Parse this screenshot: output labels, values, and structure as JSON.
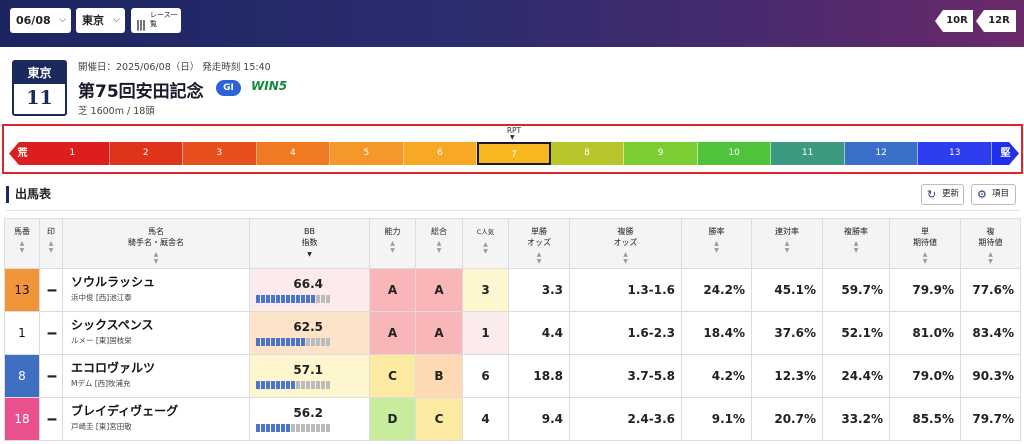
{
  "header": {
    "date": "06/08",
    "venue": "東京",
    "race_list_label": "レース一覧",
    "prev_race": "10R",
    "next_race": "12R"
  },
  "race": {
    "venue": "東京",
    "number": "11",
    "meta": "開催日：2025/06/08（日） 発走時刻 15:40",
    "title": "第75回安田記念",
    "grade": "GI",
    "win5": "WIN5",
    "condition": "芝 1600m / 18頭"
  },
  "rpt": {
    "label": "RPT",
    "left_end": "荒",
    "right_end": "堅",
    "current": 7,
    "segments": [
      {
        "label": "1",
        "color": "#dd1e1e"
      },
      {
        "label": "2",
        "color": "#df3419"
      },
      {
        "label": "3",
        "color": "#e94f1e"
      },
      {
        "label": "4",
        "color": "#f07a22"
      },
      {
        "label": "5",
        "color": "#f5982a"
      },
      {
        "label": "6",
        "color": "#f7a926"
      },
      {
        "label": "7",
        "color": "#f7b81f"
      },
      {
        "label": "8",
        "color": "#b7c52a"
      },
      {
        "label": "9",
        "color": "#7ccc33"
      },
      {
        "label": "10",
        "color": "#4ec33b"
      },
      {
        "label": "11",
        "color": "#3b9a80"
      },
      {
        "label": "12",
        "color": "#3b6fc9"
      },
      {
        "label": "13",
        "color": "#2c3ef0"
      }
    ],
    "left_color": "#dd1e1e",
    "right_color": "#1f2fea"
  },
  "section": {
    "title": "出馬表",
    "refresh_label": "更新",
    "items_label": "項目"
  },
  "table": {
    "headers": {
      "umaban": "馬番",
      "mark": "印",
      "name": "馬名",
      "name_sub": "騎手名・厩舎名",
      "bb": "BB",
      "bb_sub": "指数",
      "ability": "能力",
      "total": "総合",
      "c_ninki": "C人気",
      "win_odds": "単勝",
      "win_odds_sub": "オッズ",
      "place_odds": "複勝",
      "place_odds_sub": "オッズ",
      "win_rate": "勝率",
      "rentai_rate": "連対率",
      "place_rate": "複勝率",
      "win_ev": "単",
      "win_ev_sub": "期待値",
      "place_ev": "複",
      "place_ev_sub": "期待値"
    },
    "rows": [
      {
        "umaban": "13",
        "uma_color": "#f0953a",
        "uma_text": "#111",
        "mark": "--",
        "horse": "ソウルラッシュ",
        "jockey": "浜中俊 [西]池江泰",
        "bb": "66.4",
        "bb_level": 0.8,
        "bb_bg": "#fbebec",
        "ability": "A",
        "ability_bg": "#f9b6b8",
        "total": "A",
        "total_bg": "#f9b6b8",
        "c": "3",
        "c_bg": "#fdf6cf",
        "win_odds": "3.3",
        "place_odds": "1.3-1.6",
        "win_rate": "24.2%",
        "rentai_rate": "45.1%",
        "place_rate": "59.7%",
        "win_ev": "79.9%",
        "place_ev": "77.6%"
      },
      {
        "umaban": "1",
        "uma_color": "#ffffff",
        "uma_text": "#111",
        "mark": "--",
        "horse": "シックスペンス",
        "jockey": "ルメー [東]国枝栄",
        "bb": "62.5",
        "bb_level": 0.68,
        "bb_bg": "#fde3c8",
        "ability": "A",
        "ability_bg": "#f9b6b8",
        "total": "A",
        "total_bg": "#f9b6b8",
        "c": "1",
        "c_bg": "#fbebec",
        "win_odds": "4.4",
        "place_odds": "1.6-2.3",
        "win_rate": "18.4%",
        "rentai_rate": "37.6%",
        "place_rate": "52.1%",
        "win_ev": "81.0%",
        "place_ev": "83.4%"
      },
      {
        "umaban": "8",
        "uma_color": "#3e6fc0",
        "uma_text": "#fff",
        "mark": "--",
        "horse": "エコロヴァルツ",
        "jockey": "Mデム [西]牧浦充",
        "bb": "57.1",
        "bb_level": 0.5,
        "bb_bg": "#fdf6cf",
        "ability": "C",
        "ability_bg": "#fdeaa2",
        "total": "B",
        "total_bg": "#fdd9b4",
        "c": "6",
        "c_bg": "#ffffff",
        "win_odds": "18.8",
        "place_odds": "3.7-5.8",
        "win_rate": "4.2%",
        "rentai_rate": "12.3%",
        "place_rate": "24.4%",
        "win_ev": "79.0%",
        "place_ev": "90.3%"
      },
      {
        "umaban": "18",
        "uma_color": "#e8508e",
        "uma_text": "#fff",
        "mark": "--",
        "horse": "ブレイディヴェーグ",
        "jockey": "戸崎圭 [東]宮田敬",
        "bb": "56.2",
        "bb_level": 0.46,
        "bb_bg": "#ffffff",
        "ability": "D",
        "ability_bg": "#c8ec9e",
        "total": "C",
        "total_bg": "#fdeaa2",
        "c": "4",
        "c_bg": "#ffffff",
        "win_odds": "9.4",
        "place_odds": "2.4-3.6",
        "win_rate": "9.1%",
        "rentai_rate": "20.7%",
        "place_rate": "33.2%",
        "win_ev": "85.5%",
        "place_ev": "79.7%"
      }
    ]
  }
}
